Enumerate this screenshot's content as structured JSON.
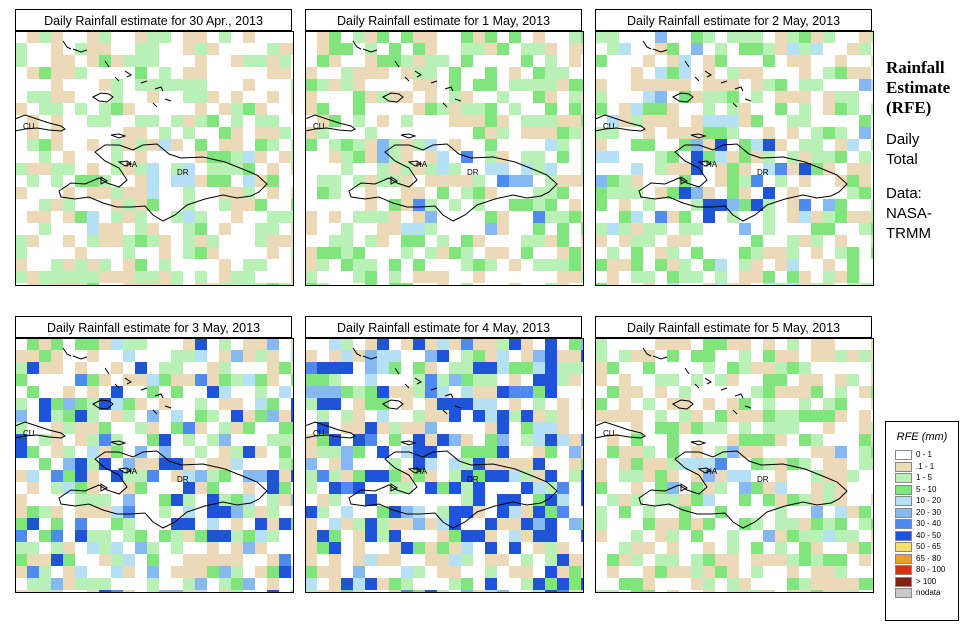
{
  "panels": [
    {
      "title": "Daily Rainfall estimate for  30 Apr., 2013",
      "labels": {
        "cu": "CU",
        "ha": "HA",
        "dr": "DR"
      }
    },
    {
      "title": "Daily Rainfall estimate for  1 May, 2013",
      "labels": {
        "cu": "CU",
        "ha": "HA",
        "dr": "DR"
      }
    },
    {
      "title": "Daily Rainfall estimate for  2 May, 2013",
      "labels": {
        "cu": "CU",
        "ha": "HA",
        "dr": "DR"
      }
    },
    {
      "title": "Daily Rainfall estimate for  3 May, 2013",
      "labels": {
        "cu": "CU",
        "ha": "HA",
        "dr": "DR"
      }
    },
    {
      "title": "Daily Rainfall estimate for  4 May, 2013",
      "labels": {
        "cu": "CU",
        "ha": "HA",
        "dr": "DR"
      }
    },
    {
      "title": "Daily Rainfall estimate for  5 May, 2013",
      "labels": {
        "cu": "CU",
        "ha": "HA",
        "dr": "DR"
      }
    }
  ],
  "side": {
    "title_lines": [
      "Rainfall",
      "Estimate",
      "(RFE)"
    ],
    "period_lines": [
      "Daily",
      "Total"
    ],
    "source_lines": [
      "Data:",
      "NASA-",
      "TRMM"
    ]
  },
  "legend": {
    "title": "RFE (mm)",
    "items": [
      {
        "label": "0 - 1",
        "color": "#ffffff"
      },
      {
        "label": ".1 - 1",
        "color": "#ecd9b8"
      },
      {
        "label": "1 - 5",
        "color": "#b9f0b5"
      },
      {
        "label": "5 - 10",
        "color": "#7fe57c"
      },
      {
        "label": "10 - 20",
        "color": "#b6e1f4"
      },
      {
        "label": "20 - 30",
        "color": "#86b8f2"
      },
      {
        "label": "30 - 40",
        "color": "#4f8af0"
      },
      {
        "label": "40 - 50",
        "color": "#2054d8"
      },
      {
        "label": "50 - 65",
        "color": "#f5e06e"
      },
      {
        "label": "65 - 80",
        "color": "#f0a020"
      },
      {
        "label": "80 - 100",
        "color": "#d83010"
      },
      {
        "label": "> 100",
        "color": "#8c1c10"
      },
      {
        "label": "nodata",
        "color": "#c8c8c8"
      }
    ]
  }
}
